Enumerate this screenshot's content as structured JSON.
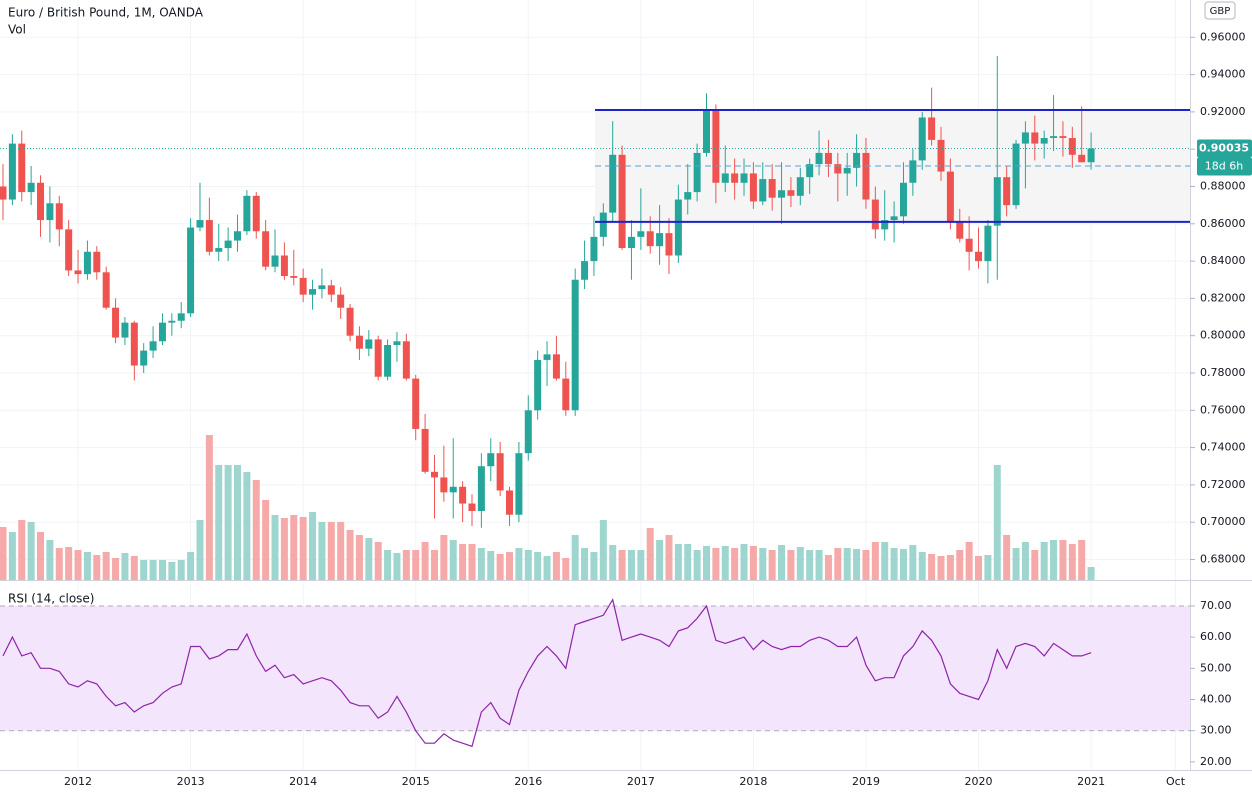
{
  "chart_data": {
    "type": "candlestick",
    "title": "Euro / British Pound, 1M, OANDA",
    "currency": "GBP",
    "countdown": "18d 6h",
    "up_color": "#26a69a",
    "down_color": "#ef5350",
    "categories": [
      null,
      null,
      null,
      null,
      null,
      null,
      null,
      null,
      "2012",
      null,
      null,
      null,
      null,
      null,
      null,
      null,
      null,
      null,
      null,
      null,
      "2013",
      null,
      null,
      null,
      null,
      null,
      null,
      null,
      null,
      null,
      null,
      null,
      "2014",
      null,
      null,
      null,
      null,
      null,
      null,
      null,
      null,
      null,
      null,
      null,
      "2015",
      null,
      null,
      null,
      null,
      null,
      null,
      null,
      null,
      null,
      null,
      null,
      "2016",
      null,
      null,
      null,
      null,
      null,
      null,
      null,
      null,
      null,
      null,
      null,
      "2017",
      null,
      null,
      null,
      null,
      null,
      null,
      null,
      null,
      null,
      null,
      null,
      "2018",
      null,
      null,
      null,
      null,
      null,
      null,
      null,
      null,
      null,
      null,
      null,
      "2019",
      null,
      null,
      null,
      null,
      null,
      null,
      null,
      null,
      null,
      null,
      null,
      "2020",
      null,
      null,
      null,
      null,
      null,
      null,
      null,
      null,
      null,
      null,
      null,
      "2021"
    ],
    "future_tick": "Oct",
    "open": [
      0.88,
      0.873,
      0.903,
      0.877,
      0.882,
      0.862,
      0.871,
      0.857,
      0.835,
      0.833,
      0.845,
      0.834,
      0.815,
      0.799,
      0.807,
      0.784,
      0.792,
      0.797,
      0.807,
      0.808,
      0.812,
      0.858,
      0.862,
      0.845,
      0.847,
      0.851,
      0.856,
      0.875,
      0.856,
      0.837,
      0.843,
      0.832,
      0.831,
      0.822,
      0.825,
      0.827,
      0.822,
      0.815,
      0.8,
      0.793,
      0.798,
      0.778,
      0.795,
      0.797,
      0.777,
      0.75,
      0.727,
      0.724,
      0.716,
      0.719,
      0.71,
      0.706,
      0.73,
      0.737,
      0.717,
      0.704,
      0.737,
      0.76,
      0.787,
      0.79,
      0.777,
      0.76,
      0.83,
      0.84,
      0.853,
      0.866,
      0.897,
      0.847,
      0.853,
      0.856,
      0.848,
      0.855,
      0.843,
      0.873,
      0.877,
      0.898,
      0.921,
      0.882,
      0.887,
      0.882,
      0.887,
      0.872,
      0.884,
      0.874,
      0.878,
      0.875,
      0.885,
      0.892,
      0.898,
      0.892,
      0.887,
      0.89,
      0.898,
      0.873,
      0.857,
      0.862,
      0.864,
      0.882,
      0.894,
      0.917,
      0.905,
      0.888,
      0.861,
      0.852,
      0.845,
      0.84,
      0.859,
      0.885,
      0.87,
      0.903,
      0.909,
      0.903,
      0.906,
      0.907,
      0.906,
      0.897,
      0.893
    ],
    "high": [
      0.892,
      0.908,
      0.91,
      0.891,
      0.886,
      0.88,
      0.875,
      0.862,
      0.846,
      0.851,
      0.848,
      0.837,
      0.82,
      0.81,
      0.808,
      0.796,
      0.805,
      0.812,
      0.812,
      0.818,
      0.863,
      0.882,
      0.874,
      0.86,
      0.858,
      0.865,
      0.878,
      0.877,
      0.862,
      0.857,
      0.85,
      0.846,
      0.836,
      0.83,
      0.836,
      0.83,
      0.826,
      0.817,
      0.805,
      0.803,
      0.8,
      0.798,
      0.802,
      0.801,
      0.779,
      0.758,
      0.736,
      0.741,
      0.745,
      0.722,
      0.715,
      0.737,
      0.745,
      0.743,
      0.719,
      0.743,
      0.768,
      0.792,
      0.797,
      0.8,
      0.786,
      0.836,
      0.851,
      0.864,
      0.871,
      0.915,
      0.902,
      0.862,
      0.879,
      0.864,
      0.87,
      0.863,
      0.881,
      0.892,
      0.903,
      0.93,
      0.924,
      0.902,
      0.895,
      0.895,
      0.893,
      0.893,
      0.892,
      0.893,
      0.885,
      0.89,
      0.895,
      0.91,
      0.905,
      0.898,
      0.898,
      0.908,
      0.906,
      0.88,
      0.878,
      0.872,
      0.893,
      0.9,
      0.92,
      0.933,
      0.912,
      0.895,
      0.868,
      0.864,
      0.858,
      0.862,
      0.95,
      0.891,
      0.905,
      0.915,
      0.918,
      0.91,
      0.929,
      0.915,
      0.912,
      0.923,
      0.909
    ],
    "low": [
      0.862,
      0.87,
      0.872,
      0.87,
      0.853,
      0.85,
      0.848,
      0.832,
      0.828,
      0.83,
      0.83,
      0.814,
      0.796,
      0.795,
      0.776,
      0.78,
      0.788,
      0.795,
      0.8,
      0.804,
      0.81,
      0.856,
      0.843,
      0.84,
      0.84,
      0.845,
      0.854,
      0.852,
      0.835,
      0.834,
      0.83,
      0.827,
      0.818,
      0.814,
      0.82,
      0.818,
      0.809,
      0.797,
      0.787,
      0.789,
      0.776,
      0.776,
      0.786,
      0.776,
      0.744,
      0.726,
      0.702,
      0.711,
      0.702,
      0.7,
      0.698,
      0.697,
      0.722,
      0.714,
      0.698,
      0.7,
      0.733,
      0.755,
      0.773,
      0.776,
      0.757,
      0.757,
      0.825,
      0.832,
      0.848,
      0.861,
      0.846,
      0.83,
      0.846,
      0.844,
      0.838,
      0.833,
      0.839,
      0.865,
      0.872,
      0.896,
      0.871,
      0.877,
      0.873,
      0.875,
      0.868,
      0.87,
      0.867,
      0.86,
      0.869,
      0.87,
      0.876,
      0.886,
      0.885,
      0.872,
      0.875,
      0.88,
      0.868,
      0.852,
      0.851,
      0.85,
      0.86,
      0.875,
      0.889,
      0.902,
      0.883,
      0.857,
      0.85,
      0.835,
      0.836,
      0.828,
      0.83,
      0.864,
      0.868,
      0.879,
      0.894,
      0.895,
      0.899,
      0.896,
      0.89,
      0.893,
      0.889
    ],
    "close": [
      0.873,
      0.903,
      0.877,
      0.882,
      0.862,
      0.871,
      0.857,
      0.835,
      0.833,
      0.845,
      0.834,
      0.815,
      0.799,
      0.807,
      0.784,
      0.792,
      0.797,
      0.807,
      0.808,
      0.812,
      0.858,
      0.862,
      0.845,
      0.847,
      0.851,
      0.856,
      0.875,
      0.856,
      0.837,
      0.843,
      0.832,
      0.831,
      0.822,
      0.825,
      0.827,
      0.822,
      0.815,
      0.8,
      0.793,
      0.798,
      0.778,
      0.795,
      0.797,
      0.777,
      0.75,
      0.727,
      0.724,
      0.716,
      0.719,
      0.71,
      0.706,
      0.73,
      0.737,
      0.717,
      0.704,
      0.737,
      0.76,
      0.787,
      0.79,
      0.777,
      0.76,
      0.83,
      0.84,
      0.853,
      0.866,
      0.897,
      0.847,
      0.853,
      0.856,
      0.848,
      0.855,
      0.843,
      0.873,
      0.877,
      0.898,
      0.921,
      0.882,
      0.887,
      0.882,
      0.887,
      0.872,
      0.884,
      0.874,
      0.878,
      0.875,
      0.885,
      0.892,
      0.898,
      0.892,
      0.887,
      0.89,
      0.898,
      0.873,
      0.857,
      0.862,
      0.864,
      0.882,
      0.894,
      0.917,
      0.905,
      0.888,
      0.861,
      0.852,
      0.845,
      0.84,
      0.859,
      0.885,
      0.87,
      0.903,
      0.909,
      0.903,
      0.906,
      0.907,
      0.906,
      0.897,
      0.893,
      0.90035
    ],
    "ylim": [
      0.669,
      0.98
    ],
    "yticks": [
      {
        "value": 0.68,
        "label": "0.68000"
      },
      {
        "value": 0.7,
        "label": "0.70000"
      },
      {
        "value": 0.72,
        "label": "0.72000"
      },
      {
        "value": 0.74,
        "label": "0.74000"
      },
      {
        "value": 0.76,
        "label": "0.76000"
      },
      {
        "value": 0.78,
        "label": "0.78000"
      },
      {
        "value": 0.8,
        "label": "0.80000"
      },
      {
        "value": 0.82,
        "label": "0.82000"
      },
      {
        "value": 0.84,
        "label": "0.84000"
      },
      {
        "value": 0.86,
        "label": "0.86000"
      },
      {
        "value": 0.88,
        "label": "0.88000"
      },
      {
        "value": 0.9,
        "label": "0.90000"
      },
      {
        "value": 0.92,
        "label": "0.92000"
      },
      {
        "value": 0.94,
        "label": "0.94000"
      },
      {
        "value": 0.96,
        "label": "0.96000"
      }
    ],
    "grid": true,
    "channel": {
      "upper": 0.921,
      "lower": 0.861,
      "color": "#1e22c8",
      "fill": "#f5f5f5"
    },
    "volume": {
      "label": "Vol",
      "ylim": [
        0,
        580
      ],
      "values": [
        53,
        48,
        60,
        58,
        48,
        40,
        32,
        33,
        30,
        28,
        25,
        28,
        22,
        27,
        24,
        20,
        20,
        20,
        18,
        20,
        28,
        60,
        145,
        115,
        115,
        115,
        108,
        100,
        80,
        65,
        62,
        65,
        63,
        68,
        58,
        58,
        58,
        50,
        45,
        42,
        38,
        30,
        27,
        30,
        30,
        38,
        30,
        45,
        40,
        36,
        36,
        32,
        29,
        26,
        28,
        32,
        30,
        28,
        24,
        28,
        22,
        45,
        32,
        28,
        60,
        35,
        30,
        30,
        30,
        52,
        40,
        45,
        36,
        36,
        30,
        34,
        32,
        34,
        32,
        36,
        34,
        32,
        30,
        35,
        30,
        33,
        30,
        30,
        25,
        32,
        32,
        31,
        30,
        38,
        38,
        32,
        31,
        35,
        28,
        26,
        24,
        25,
        30,
        38,
        24,
        25,
        115,
        45,
        32,
        38,
        30,
        38,
        40,
        40,
        36,
        40,
        13
      ],
      "up_color": "#9fd5cf",
      "down_color": "#f5a9a8"
    },
    "rsi": {
      "label": "RSI (14, close)",
      "color": "#8e24aa",
      "band": [
        30,
        70
      ],
      "band_color": "#f3e5fb",
      "ylim": [
        17.4,
        78
      ],
      "yticks": [
        {
          "value": 20,
          "label": "20.00"
        },
        {
          "value": 30,
          "label": "30.00"
        },
        {
          "value": 40,
          "label": "40.00"
        },
        {
          "value": 50,
          "label": "50.00"
        },
        {
          "value": 60,
          "label": "60.00"
        },
        {
          "value": 70,
          "label": "70.00"
        }
      ],
      "values": [
        54,
        60,
        54,
        55,
        50,
        50,
        49,
        45,
        44,
        46,
        45,
        41,
        38,
        39,
        36,
        38,
        39,
        42,
        44,
        45,
        57,
        57,
        53,
        54,
        56,
        56,
        61,
        54,
        49,
        51,
        47,
        48,
        45,
        46,
        47,
        46,
        43,
        39,
        38,
        38,
        34,
        36,
        41,
        36,
        30,
        26,
        26,
        29,
        27,
        26,
        25,
        36,
        39,
        34,
        32,
        43,
        49,
        54,
        57,
        54,
        50,
        64,
        65,
        66,
        67,
        72,
        59,
        60,
        61,
        60,
        59,
        57,
        62,
        63,
        66,
        70,
        59,
        58,
        59,
        60,
        56,
        59,
        57,
        56,
        57,
        57,
        59,
        60,
        59,
        57,
        57,
        60,
        51,
        46,
        47,
        47,
        54,
        57,
        62,
        59,
        54,
        45,
        42,
        41,
        40,
        46,
        56,
        50,
        57,
        58,
        57,
        54,
        58,
        56,
        54,
        54,
        55
      ]
    }
  }
}
